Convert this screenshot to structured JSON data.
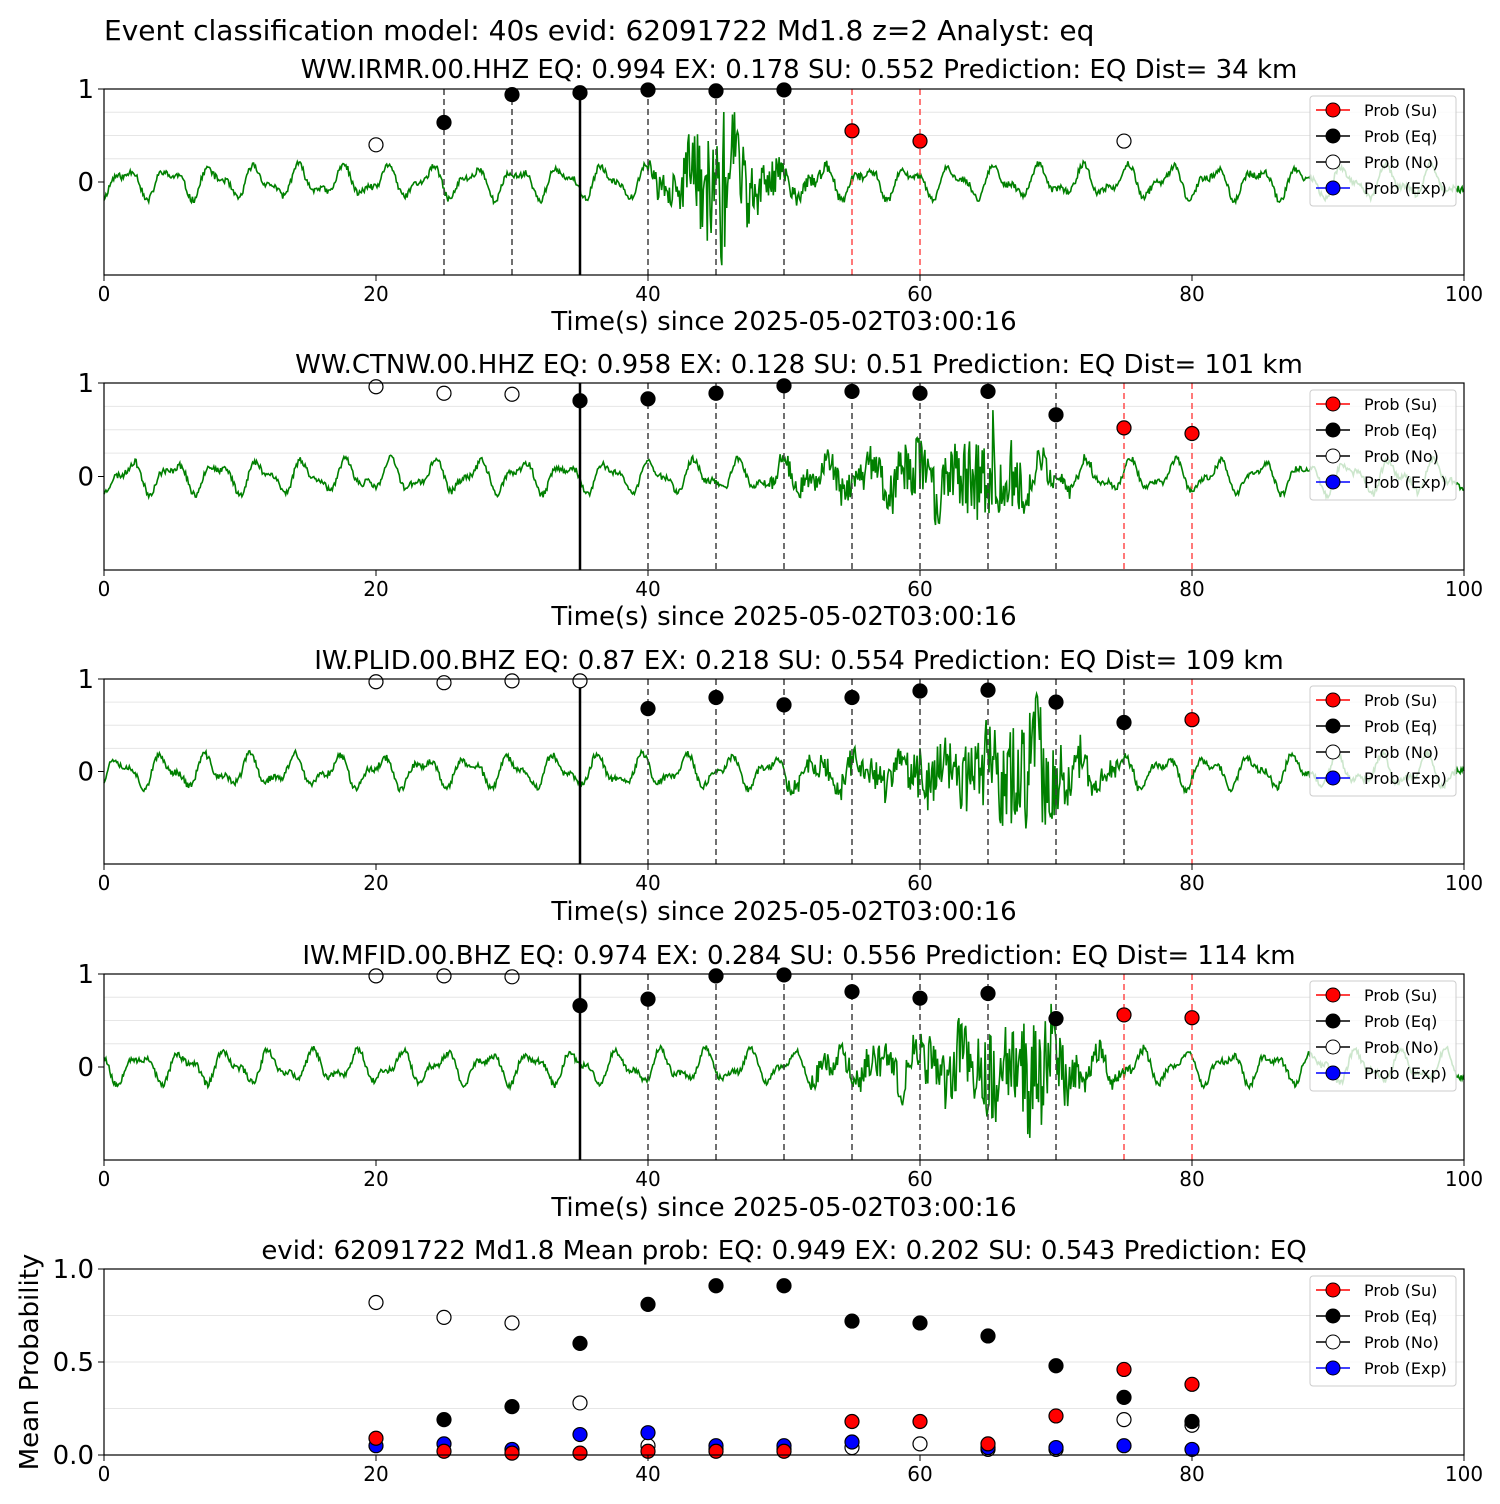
{
  "figure": {
    "title": "Event classification model: 40s evid: 62091722 Md1.8 z=2 Analyst: eq"
  },
  "legend": {
    "entries": [
      {
        "label": "Prob (Su)",
        "color": "#ff0000",
        "hollow": false
      },
      {
        "label": "Prob (Eq)",
        "color": "#000000",
        "hollow": false
      },
      {
        "label": "Prob (No)",
        "color": "#ffffff",
        "hollow": true
      },
      {
        "label": "Prob (Exp)",
        "color": "#0000ff",
        "hollow": false
      }
    ]
  },
  "colors": {
    "waveform": "#008000",
    "su": "#ff0000",
    "eq": "#000000",
    "exp": "#0000ff",
    "marker_edge": "#000000",
    "window_line": "#404040",
    "red_line": "#ff4d4d"
  },
  "chart_data": [
    {
      "type": "line",
      "station": "WW.IRMR.00.HHZ",
      "title": "WW.IRMR.00.HHZ   EQ: 0.994  EX: 0.178  SU: 0.552   Prediction: EQ    Dist= 34 km",
      "xlabel": "Time(s) since 2025-05-02T03:00:16",
      "xlim": [
        0,
        100
      ],
      "ylim": [
        -1,
        1
      ],
      "xticks": [
        "0",
        "20",
        "40",
        "60",
        "80",
        "100"
      ],
      "yticks": [
        "0",
        "1"
      ],
      "origin_time": 35,
      "window_lines": [
        25,
        30,
        40,
        45,
        50
      ],
      "red_lines": [
        55,
        60
      ],
      "burst": {
        "start": 40,
        "peak": 45.5,
        "end": 57,
        "amp": 0.85
      },
      "points": [
        {
          "x": 20,
          "y": 0.4,
          "cls": "no"
        },
        {
          "x": 25,
          "y": 0.64,
          "cls": "eq"
        },
        {
          "x": 30,
          "y": 0.94,
          "cls": "eq"
        },
        {
          "x": 35,
          "y": 0.96,
          "cls": "eq"
        },
        {
          "x": 40,
          "y": 0.99,
          "cls": "eq"
        },
        {
          "x": 45,
          "y": 0.98,
          "cls": "eq"
        },
        {
          "x": 50,
          "y": 0.99,
          "cls": "eq"
        },
        {
          "x": 55,
          "y": 0.55,
          "cls": "su"
        },
        {
          "x": 60,
          "y": 0.44,
          "cls": "su"
        },
        {
          "x": 75,
          "y": 0.44,
          "cls": "no"
        }
      ]
    },
    {
      "type": "line",
      "station": "WW.CTNW.00.HHZ",
      "title": "WW.CTNW.00.HHZ   EQ: 0.958  EX: 0.128  SU: 0.51   Prediction: EQ    Dist= 101 km",
      "xlabel": "Time(s) since 2025-05-02T03:00:16",
      "xlim": [
        0,
        100
      ],
      "ylim": [
        -1,
        1
      ],
      "xticks": [
        "0",
        "20",
        "40",
        "60",
        "80",
        "100"
      ],
      "yticks": [
        "0",
        "1"
      ],
      "origin_time": 35,
      "window_lines": [
        40,
        45,
        50,
        55,
        60,
        65,
        70
      ],
      "red_lines": [
        75,
        80
      ],
      "burst": {
        "start": 49,
        "peak": 65.5,
        "end": 74,
        "amp": 0.6
      },
      "points": [
        {
          "x": 20,
          "y": 0.96,
          "cls": "no"
        },
        {
          "x": 25,
          "y": 0.89,
          "cls": "no"
        },
        {
          "x": 30,
          "y": 0.88,
          "cls": "no"
        },
        {
          "x": 35,
          "y": 0.81,
          "cls": "eq"
        },
        {
          "x": 40,
          "y": 0.83,
          "cls": "eq"
        },
        {
          "x": 45,
          "y": 0.89,
          "cls": "eq"
        },
        {
          "x": 50,
          "y": 0.97,
          "cls": "eq"
        },
        {
          "x": 55,
          "y": 0.91,
          "cls": "eq"
        },
        {
          "x": 60,
          "y": 0.89,
          "cls": "eq"
        },
        {
          "x": 65,
          "y": 0.91,
          "cls": "eq"
        },
        {
          "x": 70,
          "y": 0.66,
          "cls": "eq"
        },
        {
          "x": 75,
          "y": 0.52,
          "cls": "su"
        },
        {
          "x": 80,
          "y": 0.46,
          "cls": "su"
        }
      ]
    },
    {
      "type": "line",
      "station": "IW.PLID.00.BHZ",
      "title": "IW.PLID.00.BHZ   EQ: 0.87  EX: 0.218  SU: 0.554   Prediction: EQ    Dist= 109 km",
      "xlabel": "Time(s) since 2025-05-02T03:00:16",
      "xlim": [
        0,
        100
      ],
      "ylim": [
        -1,
        1
      ],
      "xticks": [
        "0",
        "20",
        "40",
        "60",
        "80",
        "100"
      ],
      "yticks": [
        "0",
        "1"
      ],
      "origin_time": 35,
      "window_lines": [
        40,
        45,
        50,
        55,
        60,
        65,
        70,
        75
      ],
      "red_lines": [
        80
      ],
      "burst": {
        "start": 50,
        "peak": 69,
        "end": 76,
        "amp": 0.7
      },
      "points": [
        {
          "x": 20,
          "y": 0.97,
          "cls": "no"
        },
        {
          "x": 25,
          "y": 0.96,
          "cls": "no"
        },
        {
          "x": 30,
          "y": 0.98,
          "cls": "no"
        },
        {
          "x": 35,
          "y": 0.98,
          "cls": "no"
        },
        {
          "x": 40,
          "y": 0.68,
          "cls": "eq"
        },
        {
          "x": 45,
          "y": 0.8,
          "cls": "eq"
        },
        {
          "x": 50,
          "y": 0.72,
          "cls": "eq"
        },
        {
          "x": 55,
          "y": 0.8,
          "cls": "eq"
        },
        {
          "x": 60,
          "y": 0.87,
          "cls": "eq"
        },
        {
          "x": 65,
          "y": 0.88,
          "cls": "eq"
        },
        {
          "x": 70,
          "y": 0.75,
          "cls": "eq"
        },
        {
          "x": 75,
          "y": 0.53,
          "cls": "eq"
        },
        {
          "x": 80,
          "y": 0.56,
          "cls": "su"
        }
      ]
    },
    {
      "type": "line",
      "station": "IW.MFID.00.BHZ",
      "title": "IW.MFID.00.BHZ   EQ: 0.974  EX: 0.284  SU: 0.556   Prediction: EQ    Dist= 114 km",
      "xlabel": "Time(s) since 2025-05-02T03:00:16",
      "xlim": [
        0,
        100
      ],
      "ylim": [
        -1,
        1
      ],
      "xticks": [
        "0",
        "20",
        "40",
        "60",
        "80",
        "100"
      ],
      "yticks": [
        "0",
        "1"
      ],
      "origin_time": 35,
      "window_lines": [
        40,
        45,
        50,
        55,
        60,
        65,
        70
      ],
      "red_lines": [
        75,
        80
      ],
      "burst": {
        "start": 52,
        "peak": 68.5,
        "end": 77,
        "amp": 0.75
      },
      "points": [
        {
          "x": 20,
          "y": 0.98,
          "cls": "no"
        },
        {
          "x": 25,
          "y": 0.98,
          "cls": "no"
        },
        {
          "x": 30,
          "y": 0.97,
          "cls": "no"
        },
        {
          "x": 35,
          "y": 0.66,
          "cls": "eq"
        },
        {
          "x": 40,
          "y": 0.73,
          "cls": "eq"
        },
        {
          "x": 45,
          "y": 0.98,
          "cls": "eq"
        },
        {
          "x": 50,
          "y": 0.99,
          "cls": "eq"
        },
        {
          "x": 55,
          "y": 0.81,
          "cls": "eq"
        },
        {
          "x": 60,
          "y": 0.74,
          "cls": "eq"
        },
        {
          "x": 65,
          "y": 0.79,
          "cls": "eq"
        },
        {
          "x": 70,
          "y": 0.52,
          "cls": "eq"
        },
        {
          "x": 75,
          "y": 0.56,
          "cls": "su"
        },
        {
          "x": 80,
          "y": 0.53,
          "cls": "su"
        }
      ]
    },
    {
      "type": "scatter",
      "title": "evid: 62091722  Md1.8   Mean prob:   EQ: 0.949  EX: 0.202  SU: 0.543   Prediction: EQ",
      "ylabel": "Mean Probability",
      "xlim": [
        0,
        100
      ],
      "ylim": [
        0,
        1
      ],
      "xticks": [
        "0",
        "20",
        "40",
        "60",
        "80",
        "100"
      ],
      "yticks": [
        "0.0",
        "0.5",
        "1.0"
      ],
      "x": [
        20,
        25,
        30,
        35,
        40,
        45,
        50,
        55,
        60,
        65,
        70,
        75,
        80
      ],
      "series": [
        {
          "name": "Prob (Su)",
          "cls": "su",
          "values": [
            0.09,
            0.02,
            0.01,
            0.01,
            0.02,
            0.02,
            0.02,
            0.18,
            0.18,
            0.06,
            0.21,
            0.46,
            0.38
          ]
        },
        {
          "name": "Prob (Eq)",
          "cls": "eq",
          "values": [
            null,
            0.19,
            0.26,
            0.6,
            0.81,
            0.91,
            0.91,
            0.72,
            0.71,
            0.64,
            0.48,
            0.31,
            0.18
          ]
        },
        {
          "name": "Prob (No)",
          "cls": "no",
          "values": [
            0.82,
            0.74,
            0.71,
            0.28,
            0.05,
            0.03,
            0.03,
            0.04,
            0.06,
            0.03,
            0.03,
            0.19,
            0.16
          ]
        },
        {
          "name": "Prob (Exp)",
          "cls": "exp",
          "values": [
            0.05,
            0.06,
            0.03,
            0.11,
            0.12,
            0.05,
            0.05,
            0.07,
            null,
            0.04,
            0.04,
            0.05,
            0.03
          ]
        }
      ]
    }
  ]
}
